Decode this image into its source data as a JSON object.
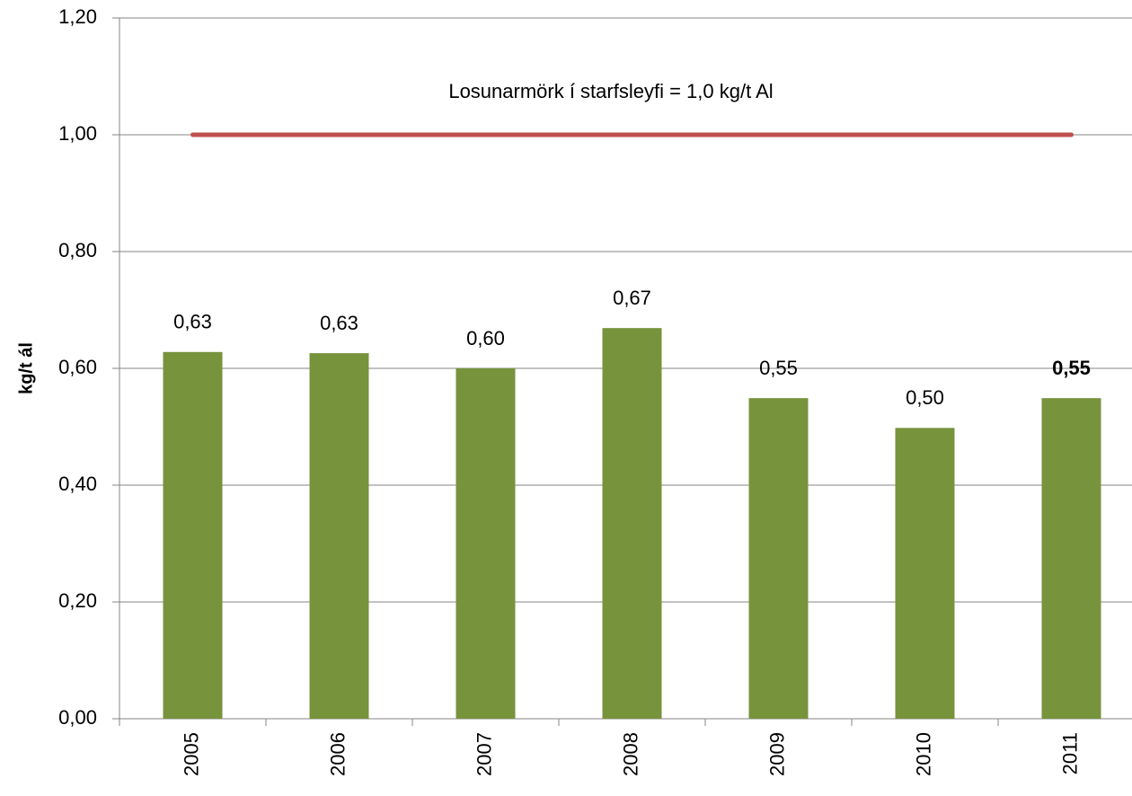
{
  "chart_data": {
    "type": "bar",
    "y_axis_label": "kg/t ál",
    "categories": [
      "2005",
      "2006",
      "2007",
      "2008",
      "2009",
      "2010",
      "2011"
    ],
    "values": [
      0.628,
      0.626,
      0.6,
      0.669,
      0.549,
      0.498,
      0.549
    ],
    "value_labels": [
      "0,63",
      "0,63",
      "0,60",
      "0,67",
      "0,55",
      "0,50",
      "0,55"
    ],
    "value_label_colors": [
      "#000000",
      "#000000",
      "#000000",
      "#000000",
      "#000000",
      "#000000",
      "#ff0000"
    ],
    "color": "#77933c",
    "ylim": [
      0,
      1.2
    ],
    "yticks": [
      {
        "value": 0,
        "label": "0,00"
      },
      {
        "value": 0.2,
        "label": "0,20"
      },
      {
        "value": 0.4,
        "label": "0,40"
      },
      {
        "value": 0.6,
        "label": "0,60"
      },
      {
        "value": 0.8,
        "label": "0,80"
      },
      {
        "value": 1.0,
        "label": "1,00"
      },
      {
        "value": 1.2,
        "label": "1,20"
      }
    ],
    "grid": true,
    "reference_line": {
      "value": 1.0,
      "label": "Losunarmörk í starfsleyfi = 1,0 kg/t Al",
      "color": "#c0504d"
    }
  }
}
